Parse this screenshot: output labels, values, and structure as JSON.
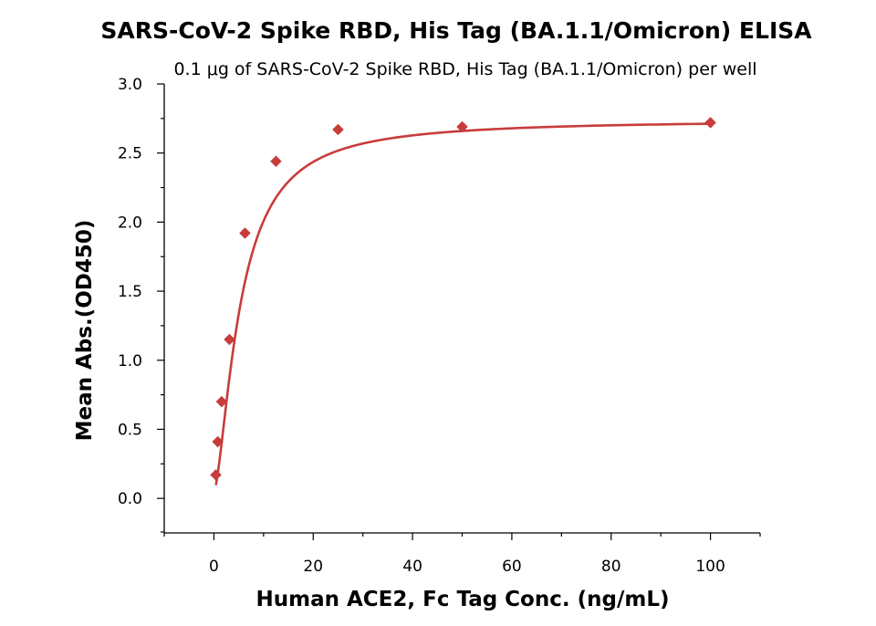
{
  "chart_data": {
    "type": "scatter",
    "title": "SARS-CoV-2 Spike RBD, His Tag (BA.1.1/Omicron) ELISA",
    "subtitle": "0.1 μg of SARS-CoV-2 Spike RBD, His Tag (BA.1.1/Omicron) per well",
    "xlabel": "Human ACE2, Fc Tag Conc. (ng/mL)",
    "ylabel": "Mean Abs.(OD450)",
    "xlim": [
      -10,
      110
    ],
    "ylim": [
      -0.25,
      3.0
    ],
    "x_ticks": [
      0,
      20,
      40,
      60,
      80,
      100
    ],
    "y_ticks": [
      0.0,
      0.5,
      1.0,
      1.5,
      2.0,
      2.5,
      3.0
    ],
    "x_tick_labels": [
      "0",
      "20",
      "40",
      "60",
      "80",
      "100"
    ],
    "y_tick_labels": [
      "0.0",
      "0.5",
      "1.0",
      "1.5",
      "2.0",
      "2.5",
      "3.0"
    ],
    "grid": false,
    "series": [
      {
        "marker": "diamond",
        "color": "#c83c3c",
        "x": [
          0.39,
          0.78,
          1.56,
          3.13,
          6.25,
          12.5,
          25,
          50,
          100
        ],
        "y": [
          0.17,
          0.41,
          0.7,
          1.15,
          1.92,
          2.44,
          2.67,
          2.69,
          2.72
        ]
      }
    ],
    "fit_curve": {
      "color": "#c83c3c",
      "type": "4PL"
    }
  }
}
